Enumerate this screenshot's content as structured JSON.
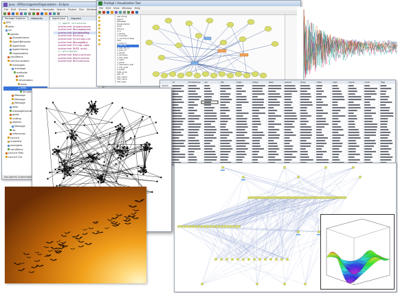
{
  "eclipse": {
    "title": "Java - EPS/src/agents/Organization - Eclipse",
    "menu": [
      "File",
      "Edit",
      "Source",
      "Refactor",
      "Navigate",
      "Search",
      "Project",
      "Run",
      "Window",
      "Help"
    ],
    "tabs": [
      "Package Explorer",
      "Hierarchy"
    ],
    "editor_tabs": [
      "Agent.java",
      "Org.java"
    ],
    "tree": [
      "EPS",
      "data",
      "src",
      "agents",
      "Acquaintance",
      "AgentBehavior",
      "AgentGoal",
      "AgentLibrary",
      "Organization",
      "conditions",
      "communication",
      "messages",
      "message",
      "methods",
      "data",
      "information",
      "body",
      "data",
      "SimpleAgentData",
      "Message",
      "Message",
      "Message",
      "data",
      "messageQueue",
      "goals",
      "routing",
      "objects",
      "Message",
      "lib",
      "references",
      "Launch",
      "mapview",
      "examples",
      "conditions",
      "Launch Files",
      "Launch Gui"
    ],
    "code": [
      "",
      "   // agent structures",
      "   protected Acquaintance",
      "   protected MessageQueue",
      "   protected DatabaseMap",
      "   protected Routing ...",
      "   protected FunctionList",
      "   protected MessageBus",
      "   protected String name",
      "   protected UUID uuid;",
      "",
      "   // attributes",
      "   protected Replications",
      "   protected Replication",
      "   protected Derivations"
    ],
    "status": "eps.agents.Organization"
  },
  "protege": {
    "title": "Protégé / Visualization Tool",
    "menu": [
      "File",
      "Edit",
      "View",
      "Window",
      "Help"
    ],
    "tabs": [
      "Classes",
      "Properties",
      "Individuals"
    ],
    "classes": [
      "owl:Thing",
      "Agent",
      "Message",
      "Organization",
      "Goal",
      "Library",
      "is_a",
      "s_active",
      "s_member",
      "s_communicates",
      "Link",
      "s_links_to",
      "s_can_do",
      "s_can_do_in",
      "s_part_of",
      "s_sends",
      "s_receives",
      "s_has_goal",
      "s_uses",
      "s_plans",
      "s_operation_sub",
      "s_sub_goal",
      "s_super",
      "data_prop",
      "attr_id",
      "has_name",
      "has_value",
      "has_type"
    ]
  },
  "spreadsheet": {
    "columns": [
      "id",
      "timestamp",
      "src",
      "dst",
      "hops",
      "delay",
      "load",
      "queue",
      "drop",
      "ratio",
      "cost",
      "score",
      "rank",
      "flag"
    ]
  },
  "colors": {
    "node_fill": "#d8dc6a",
    "edge": "#2e4b8f",
    "highlight": "#3874d8",
    "sky_top": "#7a3a06",
    "sky_mid": "#d97a0c",
    "sky_sun": "#ffe9a8"
  }
}
